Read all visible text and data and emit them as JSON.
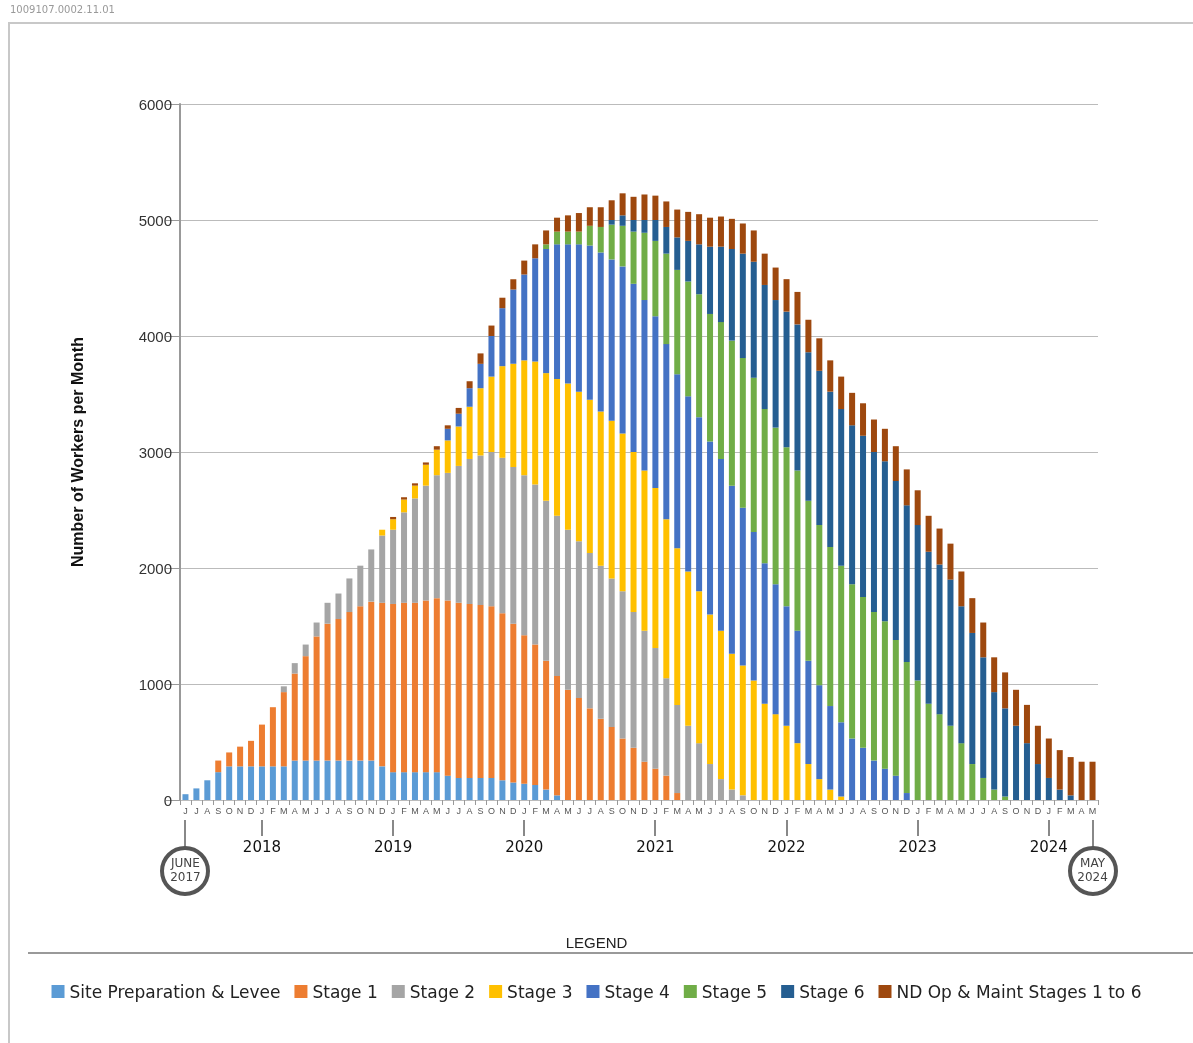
{
  "chart_data": {
    "type": "bar",
    "stacked": true,
    "ylabel": "Number of Workers per Month",
    "legend_title": "LEGEND",
    "legend": "bottom",
    "grid": "y",
    "ylim": [
      0,
      6000
    ],
    "yticks": [
      0,
      1000,
      2000,
      3000,
      4000,
      5000,
      6000
    ],
    "annotations": [
      "1009107.0002.11.01",
      "2018",
      "2019",
      "2020",
      "2021",
      "2022",
      "2023",
      "2024",
      "JUNE 2017",
      "MAY 2024"
    ],
    "categories": [
      "J",
      "J",
      "A",
      "S",
      "O",
      "N",
      "D",
      "J",
      "F",
      "M",
      "A",
      "M",
      "J",
      "J",
      "A",
      "S",
      "O",
      "N",
      "D",
      "J",
      "F",
      "M",
      "A",
      "M",
      "J",
      "J",
      "A",
      "S",
      "O",
      "N",
      "D",
      "J",
      "F",
      "M",
      "A",
      "M",
      "J",
      "J",
      "A",
      "S",
      "O",
      "N",
      "D",
      "J",
      "F",
      "M",
      "A",
      "M",
      "J",
      "J",
      "A",
      "S",
      "O",
      "N",
      "D",
      "J",
      "F",
      "M",
      "A",
      "M",
      "J",
      "J",
      "A",
      "S",
      "O",
      "N",
      "D",
      "J",
      "F",
      "M",
      "A",
      "M",
      "J",
      "J",
      "A",
      "S",
      "O",
      "N",
      "D",
      "J",
      "F",
      "M",
      "A",
      "M"
    ],
    "series": [
      {
        "name": "Site Preparation & Levee",
        "color": "#5b9bd5",
        "values": [
          50,
          100,
          170,
          240,
          290,
          290,
          290,
          290,
          290,
          290,
          340,
          340,
          340,
          340,
          340,
          340,
          340,
          340,
          290,
          240,
          240,
          240,
          240,
          240,
          210,
          190,
          190,
          190,
          190,
          170,
          150,
          140,
          130,
          90,
          40,
          null,
          null,
          null,
          null,
          null,
          null,
          null,
          null,
          null,
          null,
          null,
          null,
          null,
          null,
          null,
          null,
          null,
          null,
          null,
          null,
          null,
          null,
          null,
          null,
          null,
          null,
          null,
          null,
          null,
          null,
          null,
          null,
          null,
          null,
          null,
          null,
          null,
          null,
          null,
          null,
          null,
          null,
          null,
          null,
          null,
          null,
          null,
          null,
          null
        ]
      },
      {
        "name": "Stage 1",
        "color": "#ed7d31",
        "values": [
          null,
          null,
          null,
          100,
          120,
          170,
          220,
          360,
          510,
          640,
          750,
          900,
          1070,
          1180,
          1220,
          1280,
          1330,
          1370,
          1410,
          1450,
          1460,
          1460,
          1480,
          1500,
          1510,
          1510,
          1500,
          1490,
          1480,
          1440,
          1370,
          1280,
          1210,
          1110,
          1030,
          950,
          880,
          790,
          700,
          630,
          530,
          450,
          330,
          270,
          210,
          60,
          null,
          null,
          null,
          null,
          null,
          null,
          null,
          null,
          null,
          null,
          null,
          null,
          null,
          null,
          null,
          null,
          null,
          null,
          null,
          null,
          null,
          null,
          null,
          null,
          null,
          null,
          null,
          null,
          null,
          null,
          null,
          null,
          null,
          null,
          null,
          null,
          null,
          null
        ]
      },
      {
        "name": "Stage 2",
        "color": "#a5a5a5",
        "values": [
          null,
          null,
          null,
          null,
          null,
          null,
          null,
          null,
          null,
          50,
          90,
          100,
          120,
          180,
          220,
          290,
          350,
          450,
          580,
          640,
          780,
          900,
          990,
          1060,
          1100,
          1180,
          1250,
          1290,
          1330,
          1340,
          1350,
          1380,
          1380,
          1380,
          1380,
          1380,
          1350,
          1340,
          1320,
          1280,
          1270,
          1170,
          1130,
          1040,
          840,
          760,
          640,
          490,
          310,
          180,
          90,
          40,
          null,
          null,
          null,
          null,
          null,
          null,
          null,
          null,
          null,
          null,
          null,
          null,
          null,
          null,
          null,
          null,
          null,
          null,
          null,
          null,
          null,
          null,
          null,
          null,
          null,
          null,
          null,
          null,
          null,
          null,
          null,
          null
        ]
      },
      {
        "name": "Stage 3",
        "color": "#ffc000",
        "values": [
          null,
          null,
          null,
          null,
          null,
          null,
          null,
          null,
          null,
          null,
          null,
          null,
          null,
          null,
          null,
          null,
          null,
          null,
          50,
          90,
          110,
          110,
          180,
          220,
          280,
          340,
          450,
          580,
          650,
          790,
          890,
          990,
          1060,
          1100,
          1180,
          1260,
          1290,
          1320,
          1330,
          1360,
          1360,
          1380,
          1380,
          1380,
          1370,
          1350,
          1330,
          1310,
          1290,
          1280,
          1170,
          1120,
          1030,
          830,
          740,
          640,
          490,
          310,
          180,
          90,
          30,
          null,
          null,
          null,
          null,
          null,
          null,
          null,
          null,
          null,
          null,
          null,
          null,
          null,
          null,
          null,
          null,
          null,
          null,
          null,
          null,
          null,
          null,
          null
        ]
      },
      {
        "name": "Stage 4",
        "color": "#4472c4",
        "values": [
          null,
          null,
          null,
          null,
          null,
          null,
          null,
          null,
          null,
          null,
          null,
          null,
          null,
          null,
          null,
          null,
          null,
          null,
          null,
          null,
          null,
          null,
          null,
          null,
          100,
          110,
          160,
          210,
          350,
          500,
          640,
          740,
          890,
          1070,
          1160,
          1200,
          1270,
          1330,
          1370,
          1390,
          1440,
          1450,
          1470,
          1480,
          1510,
          1500,
          1510,
          1500,
          1490,
          1480,
          1450,
          1360,
          1280,
          1210,
          1120,
          1030,
          970,
          890,
          810,
          720,
          640,
          530,
          450,
          340,
          270,
          210,
          60,
          null,
          null,
          null,
          null,
          null,
          null,
          null,
          null,
          null,
          null,
          null,
          null,
          null,
          null,
          null,
          null,
          null
        ]
      },
      {
        "name": "Stage 5",
        "color": "#70ad47",
        "values": [
          null,
          null,
          null,
          null,
          null,
          null,
          null,
          null,
          null,
          null,
          null,
          null,
          null,
          null,
          null,
          null,
          null,
          null,
          null,
          null,
          null,
          null,
          null,
          null,
          null,
          null,
          null,
          null,
          null,
          null,
          null,
          null,
          null,
          40,
          110,
          110,
          110,
          170,
          220,
          300,
          350,
          450,
          580,
          650,
          780,
          900,
          990,
          1060,
          1100,
          1180,
          1250,
          1290,
          1330,
          1330,
          1350,
          1370,
          1380,
          1380,
          1380,
          1370,
          1350,
          1330,
          1300,
          1280,
          1270,
          1170,
          1130,
          1030,
          830,
          740,
          640,
          490,
          310,
          190,
          90,
          30,
          null,
          null,
          null,
          null,
          null,
          null,
          null,
          null
        ]
      },
      {
        "name": "Stage 6",
        "color": "#255e91",
        "values": [
          null,
          null,
          null,
          null,
          null,
          null,
          null,
          null,
          null,
          null,
          null,
          null,
          null,
          null,
          null,
          null,
          null,
          null,
          null,
          null,
          null,
          null,
          null,
          null,
          null,
          null,
          null,
          null,
          null,
          null,
          null,
          null,
          null,
          null,
          null,
          null,
          null,
          null,
          null,
          40,
          90,
          100,
          110,
          180,
          230,
          280,
          350,
          430,
          580,
          650,
          790,
          900,
          1000,
          1070,
          1100,
          1170,
          1260,
          1280,
          1330,
          1340,
          1350,
          1370,
          1390,
          1380,
          1380,
          1370,
          1350,
          1340,
          1310,
          1290,
          1260,
          1180,
          1130,
          1040,
          840,
          760,
          640,
          490,
          310,
          190,
          90,
          40,
          null,
          null
        ]
      },
      {
        "name": "ND Op & Maint Stages 1 to 6",
        "color": "#9e480e",
        "values": [
          null,
          null,
          null,
          null,
          null,
          null,
          null,
          null,
          null,
          null,
          null,
          null,
          null,
          null,
          null,
          null,
          null,
          null,
          null,
          20,
          20,
          20,
          20,
          30,
          30,
          50,
          60,
          90,
          90,
          90,
          90,
          120,
          120,
          120,
          120,
          140,
          160,
          160,
          170,
          170,
          190,
          200,
          220,
          210,
          220,
          240,
          250,
          260,
          250,
          260,
          260,
          260,
          270,
          270,
          280,
          280,
          280,
          280,
          280,
          270,
          280,
          280,
          280,
          280,
          280,
          300,
          310,
          300,
          310,
          310,
          310,
          300,
          300,
          300,
          300,
          310,
          310,
          330,
          330,
          340,
          340,
          330,
          330,
          330
        ]
      }
    ]
  }
}
